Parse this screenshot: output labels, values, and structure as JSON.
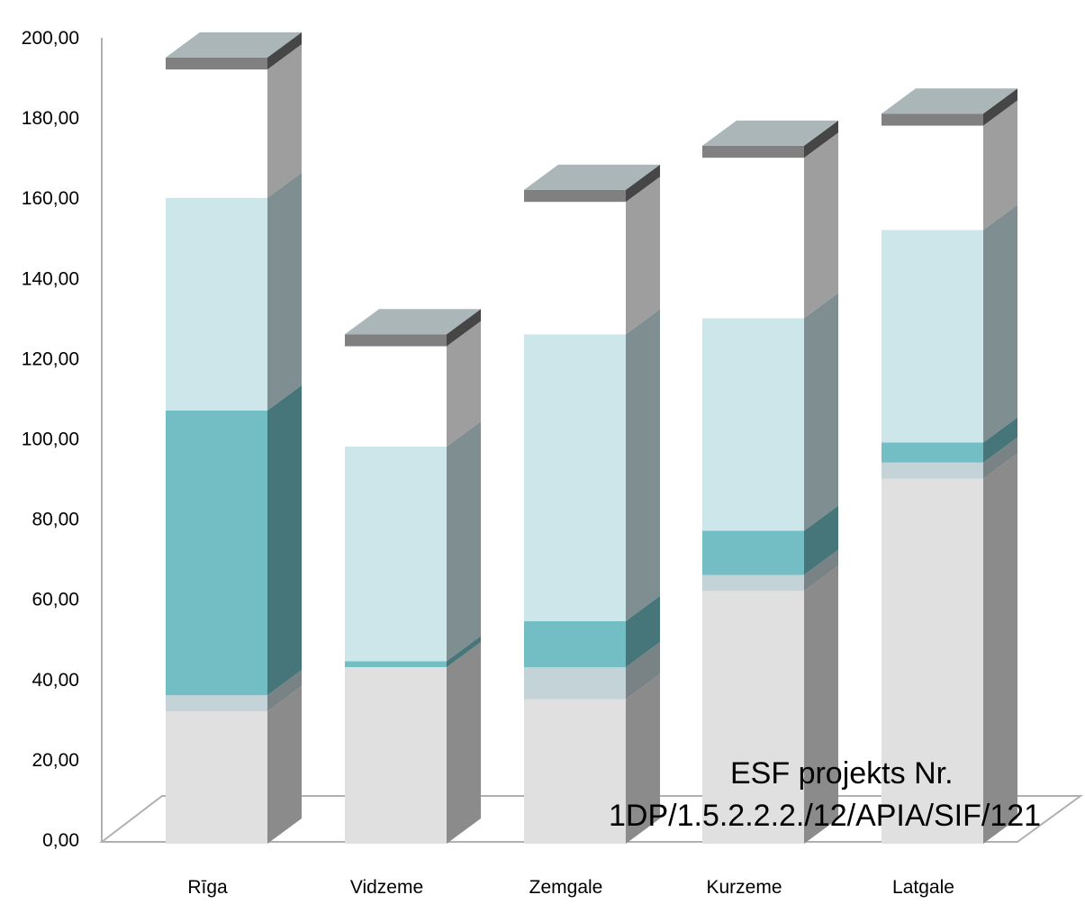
{
  "chart_data": {
    "type": "bar",
    "stacked": true,
    "three_d": true,
    "categories": [
      "Rīga",
      "Vidzeme",
      "Zemgale",
      "Kurzeme",
      "Latgale"
    ],
    "y_tick_labels": [
      "0,00",
      "20,00",
      "40,00",
      "60,00",
      "80,00",
      "100,00",
      "120,00",
      "140,00",
      "160,00",
      "180,00",
      "200,00"
    ],
    "ylim": [
      0,
      200
    ],
    "grid": false,
    "legend": "none",
    "title": "",
    "xlabel": "",
    "ylabel": "",
    "series": [
      {
        "color": "#e0e0e0",
        "values": [
          33,
          44,
          36,
          63,
          91
        ]
      },
      {
        "color": "#c3d3d7",
        "values": [
          4,
          0,
          8,
          4,
          4
        ]
      },
      {
        "color": "#72bec4",
        "values": [
          71,
          1.5,
          11.5,
          11,
          5
        ]
      },
      {
        "color": "#cde6ea",
        "values": [
          53,
          53.5,
          71.5,
          53,
          53
        ]
      },
      {
        "color": "#ffffff",
        "values": [
          32,
          25,
          33,
          40,
          26
        ]
      },
      {
        "color": "#808080",
        "values": [
          3,
          3,
          3,
          3,
          3
        ]
      }
    ]
  },
  "annotation": {
    "line1": "ESF projekts Nr.",
    "line2": "1DP/1.5.2.2.2./12/APIA/SIF/121"
  }
}
